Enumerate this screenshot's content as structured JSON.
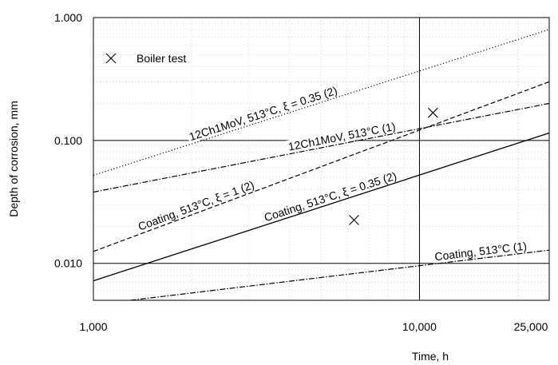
{
  "chart_data": {
    "type": "line",
    "x_scale": "log",
    "y_scale": "log",
    "xlim": [
      1000,
      25000
    ],
    "ylim": [
      0.005,
      1.0
    ],
    "xlabel": "Time, h",
    "ylabel": "Depth of corrosion, mm",
    "x_ticks": [
      {
        "value": 1000,
        "label": "1,000"
      },
      {
        "value": 10000,
        "label": "10,000"
      },
      {
        "value": 25000,
        "label": "25,000"
      }
    ],
    "y_ticks": [
      {
        "value": 0.01,
        "label": "0.010"
      },
      {
        "value": 0.1,
        "label": "0.100"
      },
      {
        "value": 1.0,
        "label": "1.000"
      }
    ],
    "grid": "major lines at x=10,000 and y=0.010, 0.100, 1.000; minor dotted grid",
    "legend": {
      "placement": "top-left",
      "entries": [
        {
          "marker": "cross",
          "label": "Boiler test"
        }
      ]
    },
    "series": [
      {
        "name": "12Ch1MoV, 513°C, ξ = 0.35 (2)",
        "style": "dotted",
        "x": [
          1000,
          25000
        ],
        "y": [
          0.052,
          0.8
        ]
      },
      {
        "name": "12Ch1MoV, 513°C (1)",
        "style": "dash-dot",
        "x": [
          1000,
          25000
        ],
        "y": [
          0.038,
          0.2
        ]
      },
      {
        "name": "Coating, 513°C, ξ = 1 (2)",
        "style": "dashed",
        "x": [
          1000,
          25000
        ],
        "y": [
          0.0125,
          0.3
        ]
      },
      {
        "name": "Coating, 513°C, ξ = 0.35 (2)",
        "style": "solid",
        "x": [
          1000,
          25000
        ],
        "y": [
          0.0072,
          0.115
        ]
      },
      {
        "name": "Coating, 513°C (1)",
        "style": "dash-dot",
        "x": [
          1300,
          25000
        ],
        "y": [
          0.005,
          0.0128
        ]
      }
    ],
    "points": [
      {
        "series": "Boiler test",
        "x": 6300,
        "y": 0.0225
      },
      {
        "series": "Boiler test",
        "x": 11000,
        "y": 0.168
      }
    ]
  }
}
